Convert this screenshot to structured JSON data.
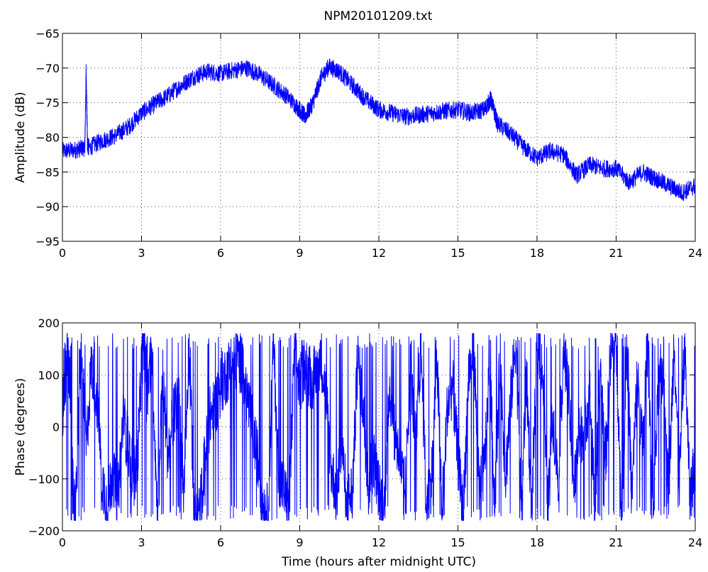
{
  "figure_title": "NPM20101209.txt",
  "chart_data": [
    {
      "type": "line",
      "title": "NPM20101209.txt",
      "xlabel": "",
      "ylabel": "Amplitude (dB)",
      "xlim": [
        0,
        24
      ],
      "ylim": [
        -95,
        -65
      ],
      "xticks": [
        0,
        3,
        6,
        9,
        12,
        15,
        18,
        21,
        24
      ],
      "yticks": [
        -95,
        -90,
        -85,
        -80,
        -75,
        -70,
        -65
      ],
      "grid": true,
      "color": "#0000ff",
      "series": [
        {
          "x": [
            0,
            0.5,
            0.85,
            0.9,
            0.95,
            1.0,
            1.5,
            2.0,
            2.5,
            3.0,
            3.5,
            4.0,
            4.5,
            5.0,
            5.5,
            6.0,
            6.5,
            7.0,
            7.5,
            8.0,
            8.5,
            9.0,
            9.2,
            9.5,
            9.8,
            10.1,
            10.5,
            11.0,
            11.5,
            12.0,
            12.5,
            13.0,
            13.5,
            14.0,
            14.5,
            15.0,
            15.5,
            16.0,
            16.25,
            16.5,
            17.0,
            17.5,
            18.0,
            18.5,
            19.0,
            19.5,
            20.0,
            20.5,
            21.0,
            21.5,
            22.0,
            22.5,
            23.0,
            23.5,
            24.0
          ],
          "y": [
            -82.0,
            -81.8,
            -81.5,
            -70.5,
            -81.0,
            -81.5,
            -80.5,
            -79.8,
            -78.5,
            -76.5,
            -75.2,
            -74.0,
            -72.5,
            -71.2,
            -70.5,
            -70.8,
            -70.3,
            -70.0,
            -71.0,
            -72.5,
            -74.0,
            -76.0,
            -77.0,
            -75.0,
            -71.5,
            -69.8,
            -70.5,
            -72.5,
            -74.5,
            -76.0,
            -76.5,
            -77.0,
            -76.8,
            -76.5,
            -76.2,
            -76.0,
            -76.5,
            -76.0,
            -74.5,
            -78.0,
            -79.5,
            -81.5,
            -83.0,
            -82.0,
            -82.5,
            -85.5,
            -84.0,
            -84.5,
            -84.5,
            -86.5,
            -85.0,
            -86.0,
            -87.0,
            -88.0,
            -87.0
          ]
        }
      ]
    },
    {
      "type": "line",
      "title": "",
      "xlabel": "Time (hours after midnight UTC)",
      "ylabel": "Phase (degrees)",
      "xlim": [
        0,
        24
      ],
      "ylim": [
        -200,
        200
      ],
      "xticks": [
        0,
        3,
        6,
        9,
        12,
        15,
        18,
        21,
        24
      ],
      "yticks": [
        -200,
        -100,
        0,
        100,
        200
      ],
      "grid": true,
      "color": "#0000ff",
      "series": [
        {
          "x": [
            0,
            0.1,
            0.2,
            0.3,
            0.4,
            0.5,
            0.7,
            0.9,
            1.1,
            1.3,
            1.5,
            1.7,
            1.9,
            2.1,
            2.3,
            2.5,
            2.7,
            2.85,
            3.0,
            3.1,
            3.2,
            3.4,
            3.6,
            3.8,
            4.0,
            4.2,
            4.4,
            4.6,
            4.8,
            5.0,
            5.2,
            5.4,
            5.6,
            5.8,
            6.0,
            6.2,
            6.4,
            6.6,
            6.8,
            7.0,
            7.2,
            7.4,
            7.6,
            7.8,
            8.0,
            8.2,
            8.4,
            8.6,
            8.8,
            9.0,
            9.2,
            9.4,
            9.6,
            9.8,
            10.0,
            10.2,
            10.4,
            10.6,
            10.8,
            11.0,
            11.2,
            11.4,
            11.6,
            11.8,
            12.0,
            12.2,
            12.4,
            12.6,
            12.8,
            13.0,
            13.2,
            13.4,
            13.6,
            13.8,
            14.0,
            14.2,
            14.4,
            14.6,
            14.8,
            15.0,
            15.2,
            15.4,
            15.6,
            15.8,
            16.0,
            16.2,
            16.4,
            16.6,
            16.8,
            17.0,
            17.2,
            17.4,
            17.6,
            17.8,
            18.0,
            18.2,
            18.4,
            18.6,
            18.8,
            19.0,
            19.2,
            19.4,
            19.6,
            19.8,
            20.0,
            20.2,
            20.4,
            20.6,
            20.8,
            21.0,
            21.2,
            21.4,
            21.6,
            21.8,
            22.0,
            22.2,
            22.4,
            22.6,
            22.8,
            23.0,
            23.2,
            23.4,
            23.6,
            23.8,
            24.0
          ],
          "y": [
            20,
            100,
            140,
            60,
            -120,
            -170,
            160,
            -40,
            120,
            60,
            -100,
            -150,
            -90,
            -140,
            20,
            -40,
            -100,
            -60,
            120,
            170,
            60,
            140,
            -170,
            100,
            -60,
            20,
            60,
            -120,
            160,
            -160,
            -170,
            -60,
            20,
            40,
            80,
            100,
            120,
            130,
            120,
            60,
            0,
            -60,
            -150,
            -170,
            170,
            -90,
            -120,
            -170,
            150,
            80,
            120,
            90,
            100,
            140,
            60,
            -80,
            -130,
            -40,
            -150,
            -120,
            130,
            40,
            -110,
            -60,
            -120,
            -160,
            80,
            -20,
            -60,
            -130,
            120,
            -40,
            160,
            -150,
            -100,
            140,
            -160,
            40,
            80,
            -60,
            -170,
            100,
            160,
            -120,
            -80,
            120,
            -140,
            140,
            -100,
            50,
            170,
            -160,
            100,
            -170,
            170,
            120,
            -150,
            20,
            -100,
            140,
            60,
            -120,
            -20,
            0,
            60,
            -160,
            120,
            -60,
            140,
            170,
            -170,
            150,
            -130,
            100,
            -40,
            170,
            -160,
            60,
            120,
            -120,
            170,
            -100,
            160,
            -140,
            -60
          ]
        }
      ]
    }
  ]
}
